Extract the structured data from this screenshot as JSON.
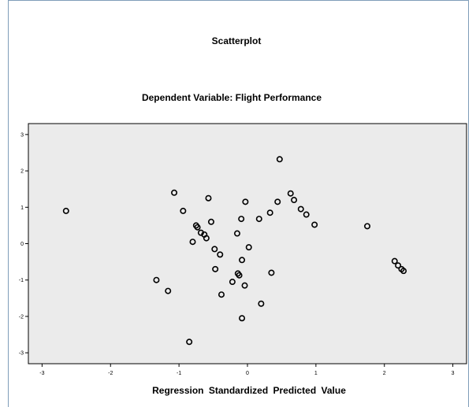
{
  "chart_data": {
    "type": "scatter",
    "title": "Scatterplot",
    "subtitle": "Dependent Variable: Flight Performance",
    "xlabel": "Regression Standardized Predicted Value",
    "ylabel": "",
    "xlim": [
      -3.2,
      3.2
    ],
    "ylim": [
      -3.3,
      3.3
    ],
    "xticks": [
      -3,
      -2,
      -1,
      0,
      1,
      2,
      3
    ],
    "yticks": [
      -3,
      -2,
      -1,
      0,
      1,
      2,
      3
    ],
    "grid": false,
    "background": "#ebebeb",
    "marker_color": "#000000",
    "points": [
      {
        "x": -2.65,
        "y": 0.9
      },
      {
        "x": -1.07,
        "y": 1.4
      },
      {
        "x": -0.94,
        "y": 0.9
      },
      {
        "x": -0.57,
        "y": 1.25
      },
      {
        "x": -0.53,
        "y": 0.6
      },
      {
        "x": -0.75,
        "y": 0.5
      },
      {
        "x": -0.73,
        "y": 0.45
      },
      {
        "x": -0.68,
        "y": 0.3
      },
      {
        "x": -0.63,
        "y": 0.25
      },
      {
        "x": -0.6,
        "y": 0.15
      },
      {
        "x": -0.8,
        "y": 0.05
      },
      {
        "x": -0.48,
        "y": -0.15
      },
      {
        "x": -0.4,
        "y": -0.3
      },
      {
        "x": -0.47,
        "y": -0.7
      },
      {
        "x": -1.33,
        "y": -1.0
      },
      {
        "x": -1.16,
        "y": -1.3
      },
      {
        "x": -0.38,
        "y": -1.4
      },
      {
        "x": -0.85,
        "y": -2.7
      },
      {
        "x": -0.03,
        "y": 1.15
      },
      {
        "x": -0.09,
        "y": 0.68
      },
      {
        "x": -0.15,
        "y": 0.28
      },
      {
        "x": 0.02,
        "y": -0.1
      },
      {
        "x": -0.08,
        "y": -0.45
      },
      {
        "x": -0.14,
        "y": -0.82
      },
      {
        "x": -0.12,
        "y": -0.87
      },
      {
        "x": -0.22,
        "y": -1.05
      },
      {
        "x": -0.04,
        "y": -1.15
      },
      {
        "x": 0.2,
        "y": -1.65
      },
      {
        "x": -0.08,
        "y": -2.05
      },
      {
        "x": 0.47,
        "y": 2.32
      },
      {
        "x": 0.44,
        "y": 1.15
      },
      {
        "x": 0.33,
        "y": 0.85
      },
      {
        "x": 0.17,
        "y": 0.68
      },
      {
        "x": 0.35,
        "y": -0.8
      },
      {
        "x": 0.63,
        "y": 1.38
      },
      {
        "x": 0.68,
        "y": 1.2
      },
      {
        "x": 0.78,
        "y": 0.95
      },
      {
        "x": 0.86,
        "y": 0.8
      },
      {
        "x": 0.98,
        "y": 0.52
      },
      {
        "x": 1.75,
        "y": 0.48
      },
      {
        "x": 2.15,
        "y": -0.48
      },
      {
        "x": 2.2,
        "y": -0.6
      },
      {
        "x": 2.25,
        "y": -0.7
      },
      {
        "x": 2.28,
        "y": -0.75
      }
    ]
  }
}
